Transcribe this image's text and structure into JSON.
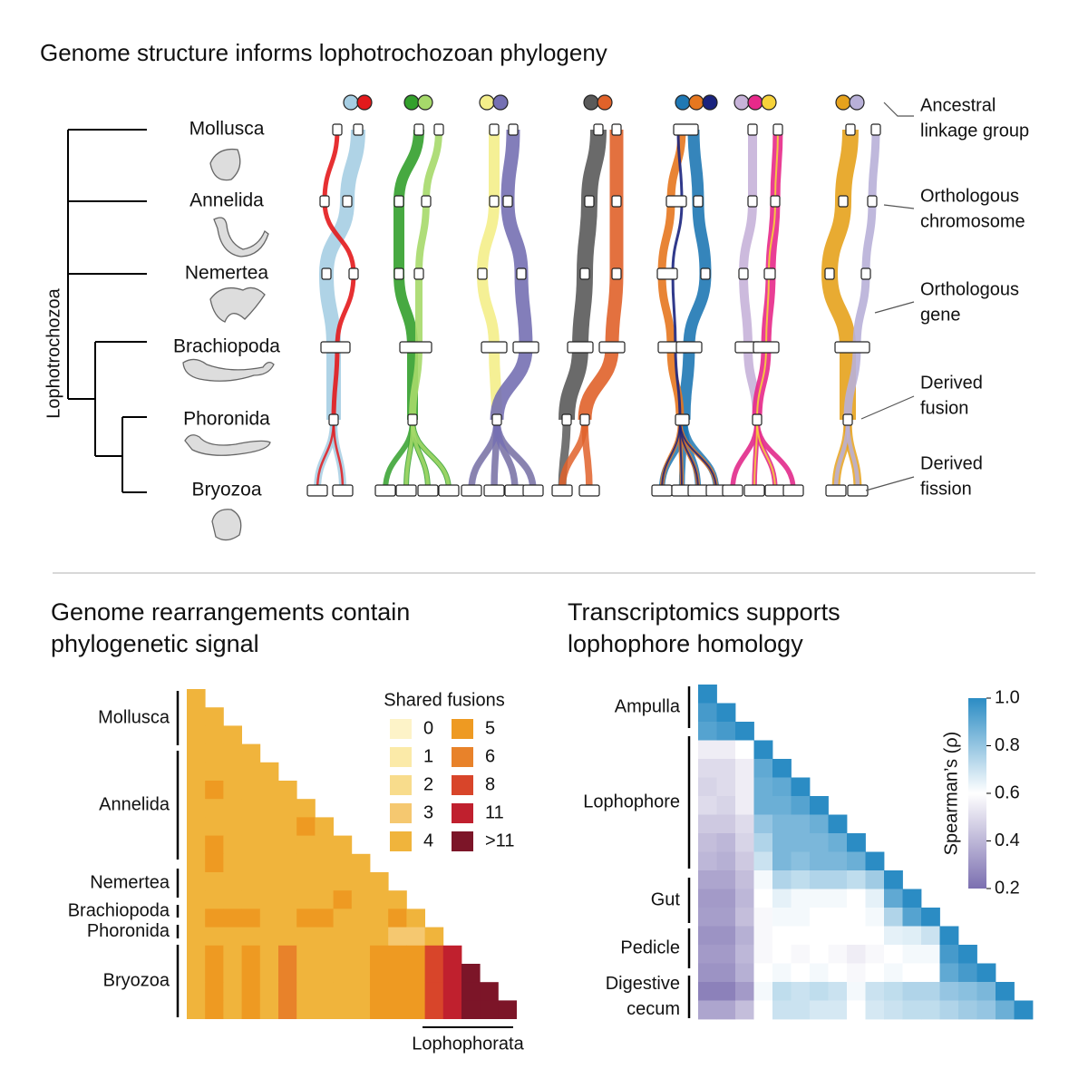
{
  "top": {
    "title": "Genome structure informs lophotrochozoan phylogeny",
    "clade": "Lophotrochozoa",
    "taxa": [
      "Mollusca",
      "Annelida",
      "Nemertea",
      "Brachiopoda",
      "Phoronida",
      "Bryozoa"
    ],
    "annotations": [
      {
        "lines": [
          "Ancestral",
          "linkage group"
        ]
      },
      {
        "lines": [
          "Orthologous",
          "chromosome"
        ]
      },
      {
        "lines": [
          "Orthologous",
          "gene"
        ]
      },
      {
        "lines": [
          "Derived",
          "fusion"
        ]
      },
      {
        "lines": [
          "Derived",
          "fission"
        ]
      }
    ]
  },
  "left_panel": {
    "title": [
      "Genome rearrangements contain",
      "phylogenetic signal"
    ],
    "groups": [
      "Mollusca",
      "Annelida",
      "Nemertea",
      "Brachiopoda",
      "Phoronida",
      "Bryozoa"
    ],
    "legend_title": "Shared fusions",
    "legend": [
      {
        "value": 0,
        "color": "#fdf3c8"
      },
      {
        "value": 1,
        "color": "#fbeaa8"
      },
      {
        "value": 2,
        "color": "#f8dc8c"
      },
      {
        "value": 3,
        "color": "#f5c870"
      },
      {
        "value": 4,
        "color": "#f0b43c"
      },
      {
        "value": 5,
        "color": "#ee9a22"
      },
      {
        "value": 6,
        "color": "#e8822a"
      },
      {
        "value": 8,
        "color": "#d8452a"
      },
      {
        "value": 11,
        "color": "#c0202e"
      },
      {
        "value": 12,
        "label": ">11",
        "color": "#7c1528"
      }
    ],
    "bracket": "Lophophorata",
    "matrix": [
      [
        4
      ],
      [
        4,
        4
      ],
      [
        4,
        4,
        4
      ],
      [
        4,
        4,
        4,
        4
      ],
      [
        4,
        4,
        4,
        4,
        4
      ],
      [
        4,
        5,
        4,
        4,
        4,
        4
      ],
      [
        4,
        4,
        4,
        4,
        4,
        4,
        4
      ],
      [
        4,
        4,
        4,
        4,
        4,
        4,
        5,
        4
      ],
      [
        4,
        5,
        4,
        4,
        4,
        4,
        4,
        4,
        4
      ],
      [
        4,
        5,
        4,
        4,
        4,
        4,
        4,
        4,
        4,
        4
      ],
      [
        4,
        4,
        4,
        4,
        4,
        4,
        4,
        4,
        4,
        4,
        4
      ],
      [
        4,
        4,
        4,
        4,
        4,
        4,
        4,
        4,
        5,
        4,
        4,
        4
      ],
      [
        4,
        5,
        5,
        5,
        4,
        4,
        5,
        5,
        4,
        4,
        4,
        5,
        4
      ],
      [
        4,
        4,
        4,
        4,
        4,
        4,
        4,
        4,
        4,
        4,
        4,
        3,
        3,
        4
      ],
      [
        4,
        5,
        4,
        5,
        4,
        6,
        4,
        4,
        4,
        4,
        5,
        5,
        5,
        8,
        11
      ],
      [
        4,
        5,
        4,
        5,
        4,
        6,
        4,
        4,
        4,
        4,
        5,
        5,
        5,
        8,
        11,
        12
      ],
      [
        4,
        5,
        4,
        5,
        4,
        6,
        4,
        4,
        4,
        4,
        5,
        5,
        5,
        8,
        11,
        12,
        12
      ],
      [
        4,
        5,
        4,
        5,
        4,
        6,
        4,
        4,
        4,
        4,
        5,
        5,
        5,
        8,
        11,
        12,
        12,
        12
      ]
    ]
  },
  "right_panel": {
    "title": [
      "Transcriptomics supports",
      "lophophore homology"
    ],
    "groups": [
      [
        "Ampulla"
      ],
      [
        "Lophophore"
      ],
      [
        "Gut"
      ],
      [
        "Pedicle"
      ],
      [
        "Digestive",
        "cecum"
      ]
    ],
    "colorbar_label": "Spearman’s (ρ)",
    "ticks": [
      {
        "value": 1,
        "label": "1.0"
      },
      0.8,
      0.6,
      0.4,
      0.2
    ],
    "clim": [
      0.2,
      1
    ],
    "colors": [
      "#7b6fb0",
      "#ffffff",
      "#2b8cc4"
    ],
    "matrix": [
      [
        1
      ],
      [
        0.95,
        1
      ],
      [
        0.92,
        0.95,
        1
      ],
      [
        0.55,
        0.55,
        0.6,
        1
      ],
      [
        0.5,
        0.5,
        0.55,
        0.9,
        1
      ],
      [
        0.48,
        0.5,
        0.55,
        0.88,
        0.9,
        1
      ],
      [
        0.5,
        0.48,
        0.55,
        0.88,
        0.88,
        0.92,
        1
      ],
      [
        0.45,
        0.45,
        0.5,
        0.8,
        0.85,
        0.85,
        0.88,
        1
      ],
      [
        0.42,
        0.4,
        0.48,
        0.75,
        0.85,
        0.85,
        0.85,
        0.88,
        1
      ],
      [
        0.4,
        0.38,
        0.45,
        0.7,
        0.85,
        0.82,
        0.85,
        0.85,
        0.88,
        1
      ],
      [
        0.35,
        0.35,
        0.42,
        0.62,
        0.75,
        0.72,
        0.75,
        0.75,
        0.72,
        0.78,
        1
      ],
      [
        0.32,
        0.32,
        0.4,
        0.6,
        0.65,
        0.62,
        0.62,
        0.62,
        0.6,
        0.65,
        0.9,
        1
      ],
      [
        0.33,
        0.33,
        0.42,
        0.58,
        0.62,
        0.62,
        0.6,
        0.6,
        0.6,
        0.62,
        0.75,
        0.92,
        1
      ],
      [
        0.3,
        0.3,
        0.38,
        0.58,
        0.6,
        0.6,
        0.6,
        0.6,
        0.6,
        0.6,
        0.65,
        0.66,
        0.7,
        1
      ],
      [
        0.32,
        0.32,
        0.4,
        0.58,
        0.6,
        0.58,
        0.6,
        0.58,
        0.55,
        0.58,
        0.6,
        0.62,
        0.62,
        0.95,
        1
      ],
      [
        0.3,
        0.3,
        0.38,
        0.6,
        0.62,
        0.6,
        0.62,
        0.6,
        0.58,
        0.6,
        0.62,
        0.6,
        0.6,
        0.9,
        0.95,
        1
      ],
      [
        0.25,
        0.25,
        0.32,
        0.62,
        0.72,
        0.7,
        0.72,
        0.7,
        0.62,
        0.7,
        0.72,
        0.75,
        0.75,
        0.8,
        0.82,
        0.85,
        1
      ],
      [
        0.35,
        0.35,
        0.42,
        0.6,
        0.7,
        0.7,
        0.68,
        0.68,
        0.6,
        0.68,
        0.7,
        0.72,
        0.72,
        0.75,
        0.78,
        0.8,
        0.88,
        1
      ]
    ]
  }
}
